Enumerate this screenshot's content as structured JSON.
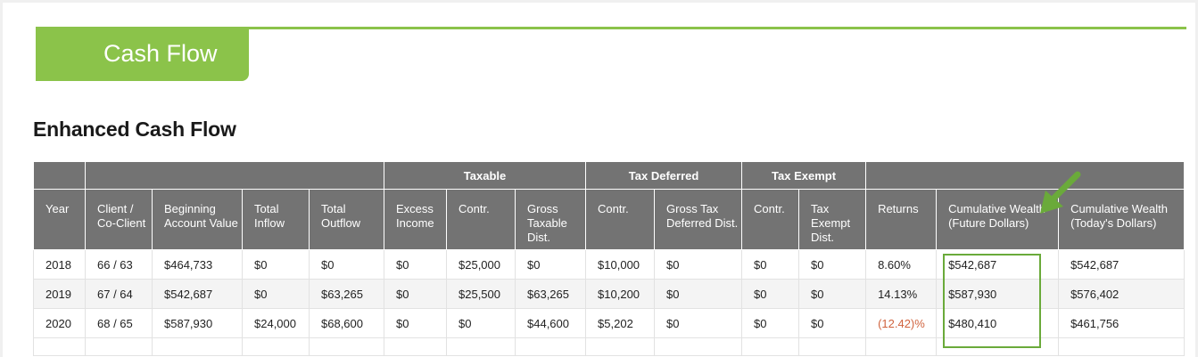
{
  "header": {
    "tab_label": "Cash Flow",
    "section_title": "Enhanced Cash Flow"
  },
  "colors": {
    "accent_green": "#8bc34a",
    "header_gray": "#737373",
    "negative_text": "#d0633e",
    "highlight_border": "#6aaa3a"
  },
  "table": {
    "group_headers": {
      "taxable": "Taxable",
      "tax_deferred": "Tax Deferred",
      "tax_exempt": "Tax Exempt"
    },
    "columns": [
      "Year",
      "Client / Co-Client",
      "Beginning Account Value",
      "Total Inflow",
      "Total Outflow",
      "Excess Income",
      "Contr.",
      "Gross Taxable Dist.",
      "Contr.",
      "Gross Tax Deferred Dist.",
      "Contr.",
      "Tax Exempt Dist.",
      "Returns",
      "Cumulative Wealth (Future Dollars)",
      "Cumulative Wealth (Today's Dollars)"
    ],
    "rows": [
      [
        "2018",
        "66 / 63",
        "$464,733",
        "$0",
        "$0",
        "$0",
        "$25,000",
        "$0",
        "$10,000",
        "$0",
        "$0",
        "$0",
        "8.60%",
        "$542,687",
        "$542,687"
      ],
      [
        "2019",
        "67 / 64",
        "$542,687",
        "$0",
        "$63,265",
        "$0",
        "$25,500",
        "$63,265",
        "$10,200",
        "$0",
        "$0",
        "$0",
        "14.13%",
        "$587,930",
        "$576,402"
      ],
      [
        "2020",
        "68 / 65",
        "$587,930",
        "$24,000",
        "$68,600",
        "$0",
        "$0",
        "$44,600",
        "$5,202",
        "$0",
        "$0",
        "$0",
        "(12.42)%",
        "$480,410",
        "$461,756"
      ]
    ],
    "negative_cells": [
      [
        2,
        12
      ]
    ]
  },
  "annotation": {
    "arrow_icon": "green-arrow-icon",
    "highlighted_column": "Cumulative Wealth (Future Dollars)"
  }
}
